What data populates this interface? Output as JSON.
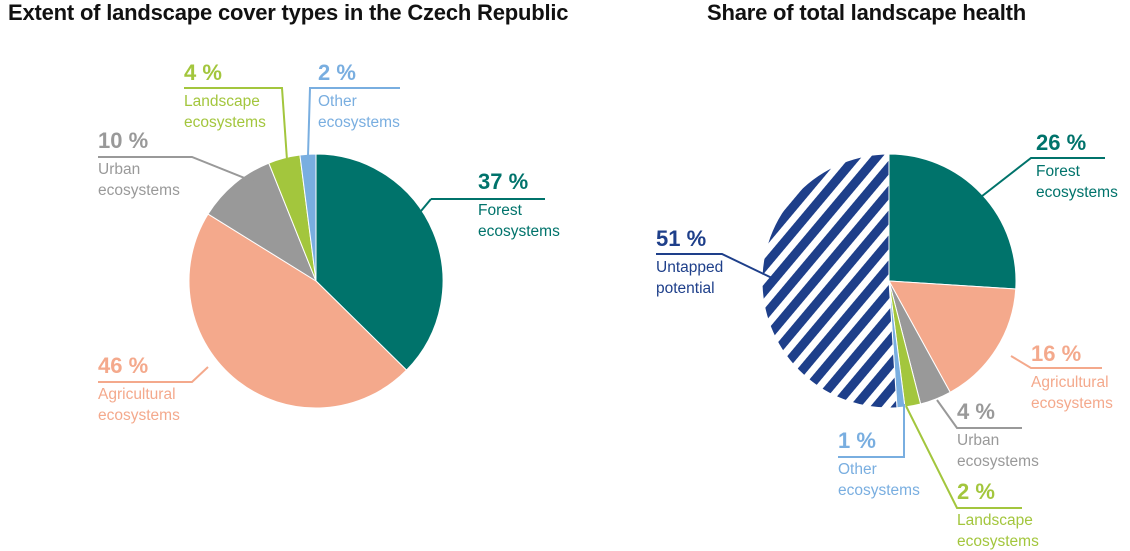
{
  "chart_data": [
    {
      "type": "pie",
      "title": "Extent of landscape cover types in the Czech Republic",
      "slices": [
        {
          "percent_label": "37 %",
          "label_lines": [
            "Forest",
            "ecosystems"
          ],
          "value": 37,
          "color": "#00736b"
        },
        {
          "percent_label": "46 %",
          "label_lines": [
            "Agricultural",
            "ecosystems"
          ],
          "value": 46,
          "color": "#f4a98c"
        },
        {
          "percent_label": "10 %",
          "label_lines": [
            "Urban",
            "ecosystems"
          ],
          "value": 10,
          "color": "#999999"
        },
        {
          "percent_label": "4 %",
          "label_lines": [
            "Landscape",
            "ecosystems"
          ],
          "value": 4,
          "color": "#a3c63d"
        },
        {
          "percent_label": "2 %",
          "label_lines": [
            "Other",
            "ecosystems"
          ],
          "value": 2,
          "color": "#79aee0"
        }
      ]
    },
    {
      "type": "pie",
      "title": "Share of total landscape health",
      "slices": [
        {
          "percent_label": "26 %",
          "label_lines": [
            "Forest",
            "ecosystems"
          ],
          "value": 26,
          "color": "#00736b"
        },
        {
          "percent_label": "16 %",
          "label_lines": [
            "Agricultural",
            "ecosystems"
          ],
          "value": 16,
          "color": "#f4a98c"
        },
        {
          "percent_label": "4 %",
          "label_lines": [
            "Urban",
            "ecosystems"
          ],
          "value": 4,
          "color": "#999999"
        },
        {
          "percent_label": "2 %",
          "label_lines": [
            "Landscape",
            "ecosystems"
          ],
          "value": 2,
          "color": "#a3c63d"
        },
        {
          "percent_label": "1 %",
          "label_lines": [
            "Other",
            "ecosystems"
          ],
          "value": 1,
          "color": "#79aee0"
        },
        {
          "percent_label": "51 %",
          "label_lines": [
            "Untapped",
            "potential"
          ],
          "value": 51,
          "color": "#1e3f8a",
          "pattern": "diagonal-stripes"
        }
      ]
    }
  ]
}
